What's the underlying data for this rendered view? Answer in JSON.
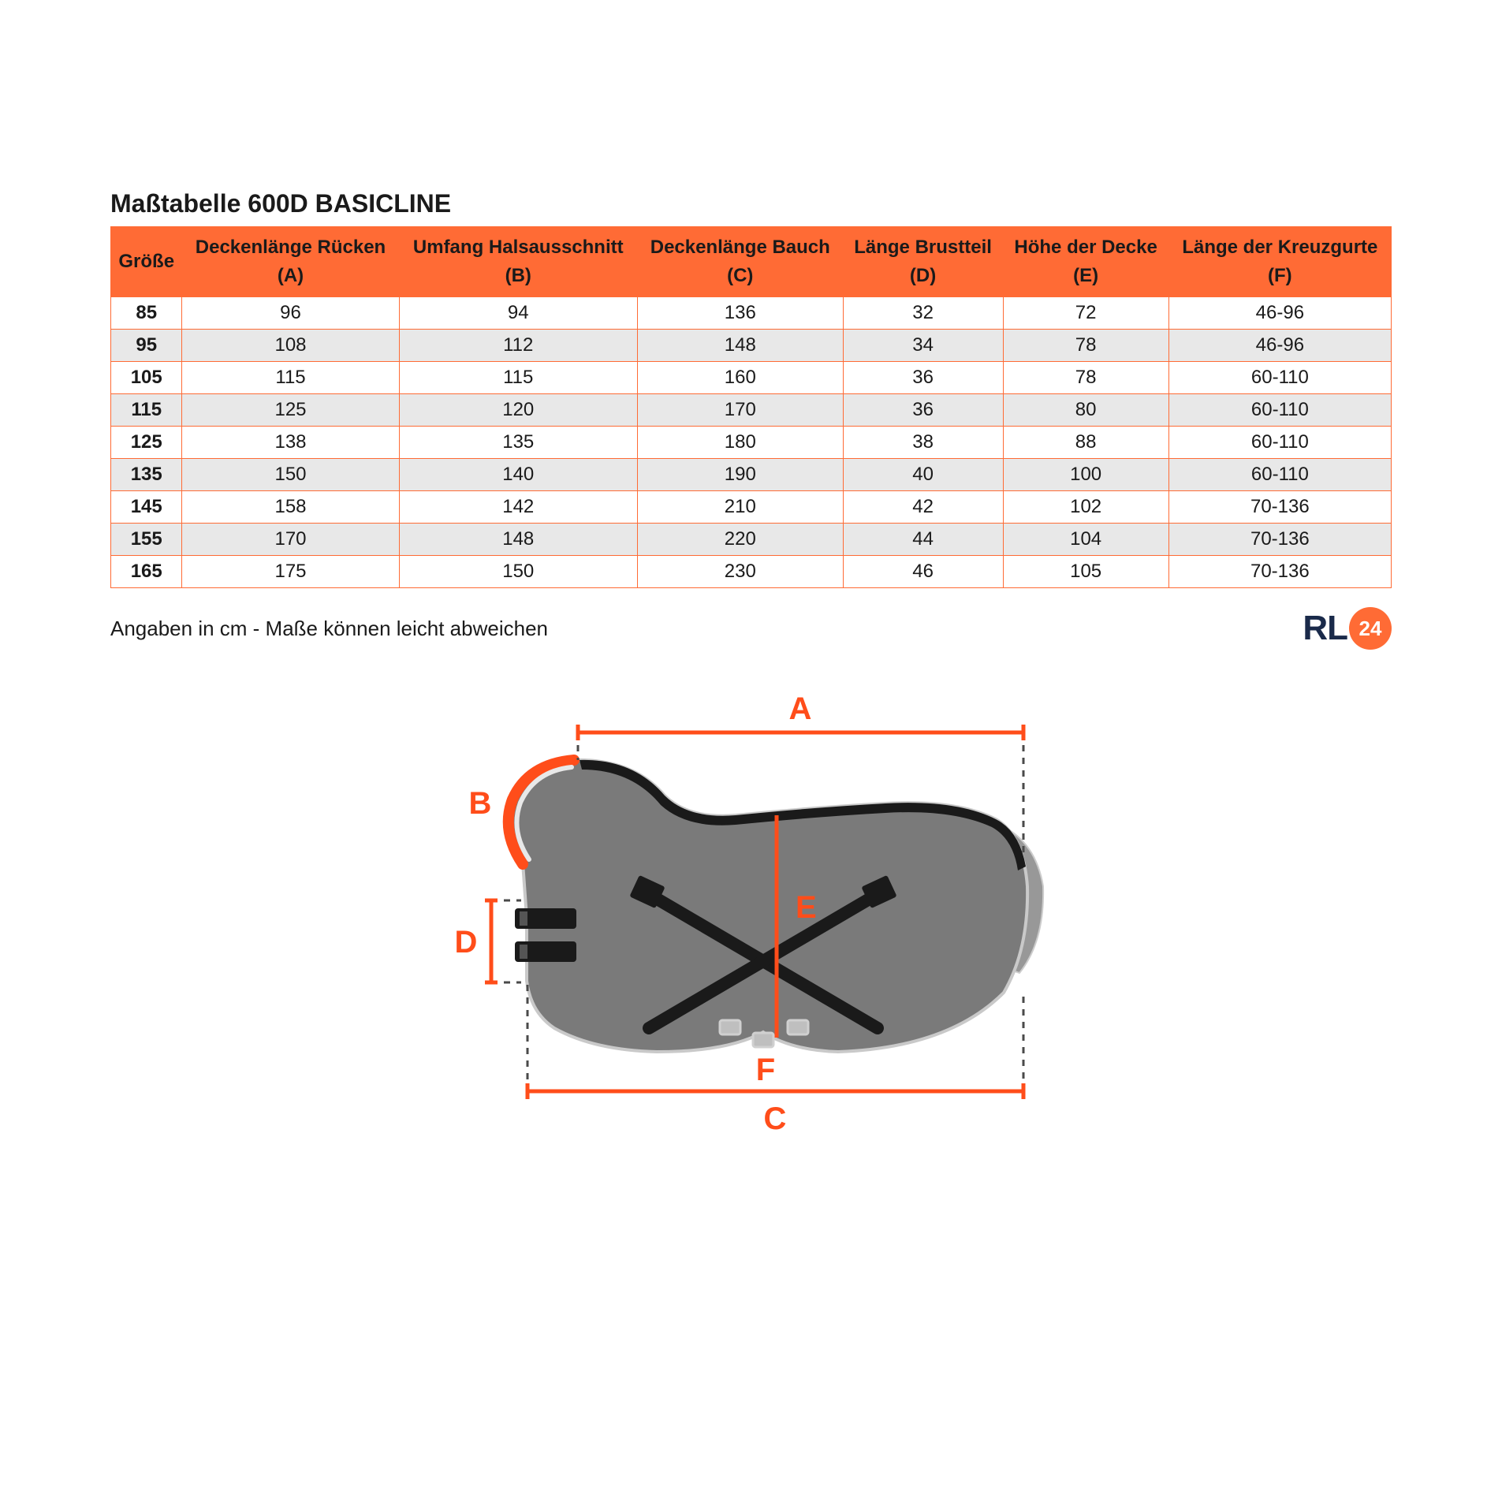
{
  "title": "Maßtabelle 600D BASICLINE",
  "note": "Angaben in cm - Maße können leicht abweichen",
  "logo": {
    "rl": "RL",
    "num": "24"
  },
  "colors": {
    "header_bg": "#ff6b35",
    "border": "#ff6b35",
    "row_odd": "#ffffff",
    "row_even": "#e8e8e8",
    "text": "#1a1a1a",
    "logo_navy": "#1a2a4a",
    "logo_orange": "#ff6b35",
    "diagram_body": "#7a7a7a",
    "diagram_trim": "#1a1a1a",
    "diagram_neck_border": "#ff4d1a",
    "diagram_guide": "#ff4d1a",
    "diagram_dash": "#4a4a4a",
    "diagram_tail": "#989898"
  },
  "table": {
    "columns": [
      {
        "line1": "Größe",
        "line2": ""
      },
      {
        "line1": "Deckenlänge Rücken",
        "line2": "(A)"
      },
      {
        "line1": "Umfang Halsausschnitt",
        "line2": "(B)"
      },
      {
        "line1": "Deckenlänge Bauch",
        "line2": "(C)"
      },
      {
        "line1": "Länge Brustteil",
        "line2": "(D)"
      },
      {
        "line1": "Höhe der Decke",
        "line2": "(E)"
      },
      {
        "line1": "Länge der Kreuzgurte",
        "line2": "(F)"
      }
    ],
    "rows": [
      [
        "85",
        "96",
        "94",
        "136",
        "32",
        "72",
        "46-96"
      ],
      [
        "95",
        "108",
        "112",
        "148",
        "34",
        "78",
        "46-96"
      ],
      [
        "105",
        "115",
        "115",
        "160",
        "36",
        "78",
        "60-110"
      ],
      [
        "115",
        "125",
        "120",
        "170",
        "36",
        "80",
        "60-110"
      ],
      [
        "125",
        "138",
        "135",
        "180",
        "38",
        "88",
        "60-110"
      ],
      [
        "135",
        "150",
        "140",
        "190",
        "40",
        "100",
        "60-110"
      ],
      [
        "145",
        "158",
        "142",
        "210",
        "42",
        "102",
        "70-136"
      ],
      [
        "155",
        "170",
        "148",
        "220",
        "44",
        "104",
        "70-136"
      ],
      [
        "165",
        "175",
        "150",
        "230",
        "46",
        "105",
        "70-136"
      ]
    ]
  },
  "diagram": {
    "labels": {
      "A": "A",
      "B": "B",
      "C": "C",
      "D": "D",
      "E": "E",
      "F": "F"
    },
    "label_fontsize": 40,
    "label_color": "#ff4d1a",
    "guide_stroke_width": 5,
    "dash_pattern": "8 8"
  }
}
